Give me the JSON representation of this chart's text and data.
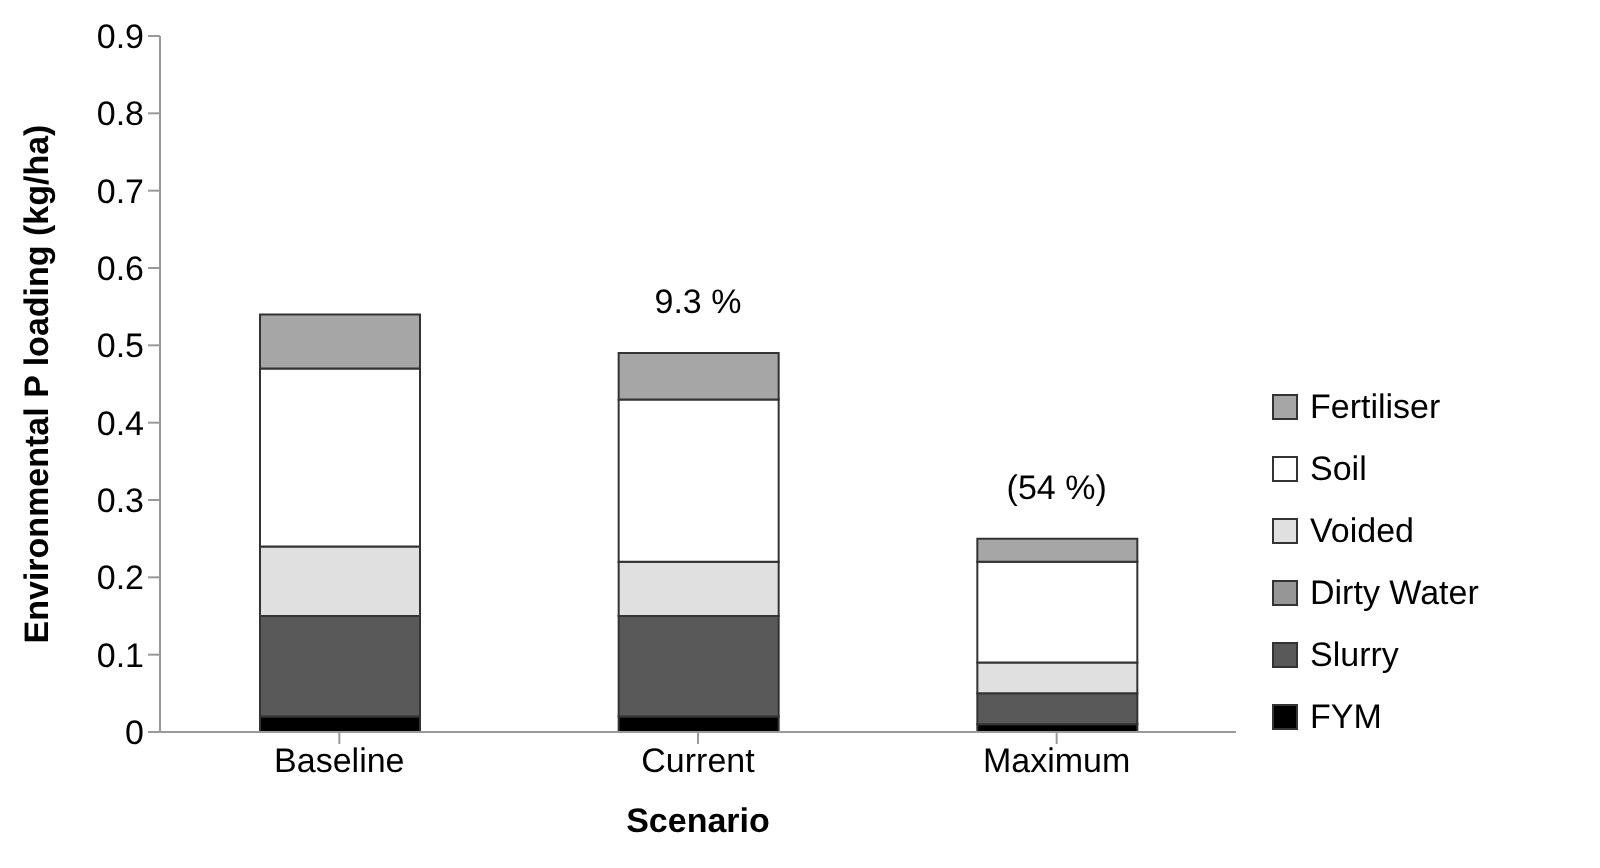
{
  "chart_data": {
    "type": "bar",
    "stacked": true,
    "xlabel": "Scenario",
    "ylabel": "Environmental P loading (kg/ha)",
    "categories": [
      "Baseline",
      "Current",
      "Maximum"
    ],
    "series": [
      {
        "name": "FYM",
        "color": "#000000",
        "values": [
          0.02,
          0.02,
          0.01
        ]
      },
      {
        "name": "Slurry",
        "color": "#595959",
        "values": [
          0.13,
          0.13,
          0.04
        ]
      },
      {
        "name": "Dirty Water",
        "color": "#969696",
        "values": [
          0,
          0,
          0
        ]
      },
      {
        "name": "Voided",
        "color": "#e0e0e0",
        "values": [
          0.09,
          0.07,
          0.04
        ]
      },
      {
        "name": "Soil",
        "color": "#ffffff",
        "values": [
          0.23,
          0.21,
          0.13
        ]
      },
      {
        "name": "Fertiliser",
        "color": "#a6a6a6",
        "values": [
          0.07,
          0.06,
          0.03
        ]
      }
    ],
    "ylim": [
      0,
      0.9
    ],
    "yticks": [
      0,
      0.1,
      0.2,
      0.3,
      0.4,
      0.5,
      0.6,
      0.7,
      0.8,
      0.9
    ],
    "annotations": [
      "9.3 %",
      "(54 %)"
    ],
    "grid": false,
    "legend": "right"
  }
}
